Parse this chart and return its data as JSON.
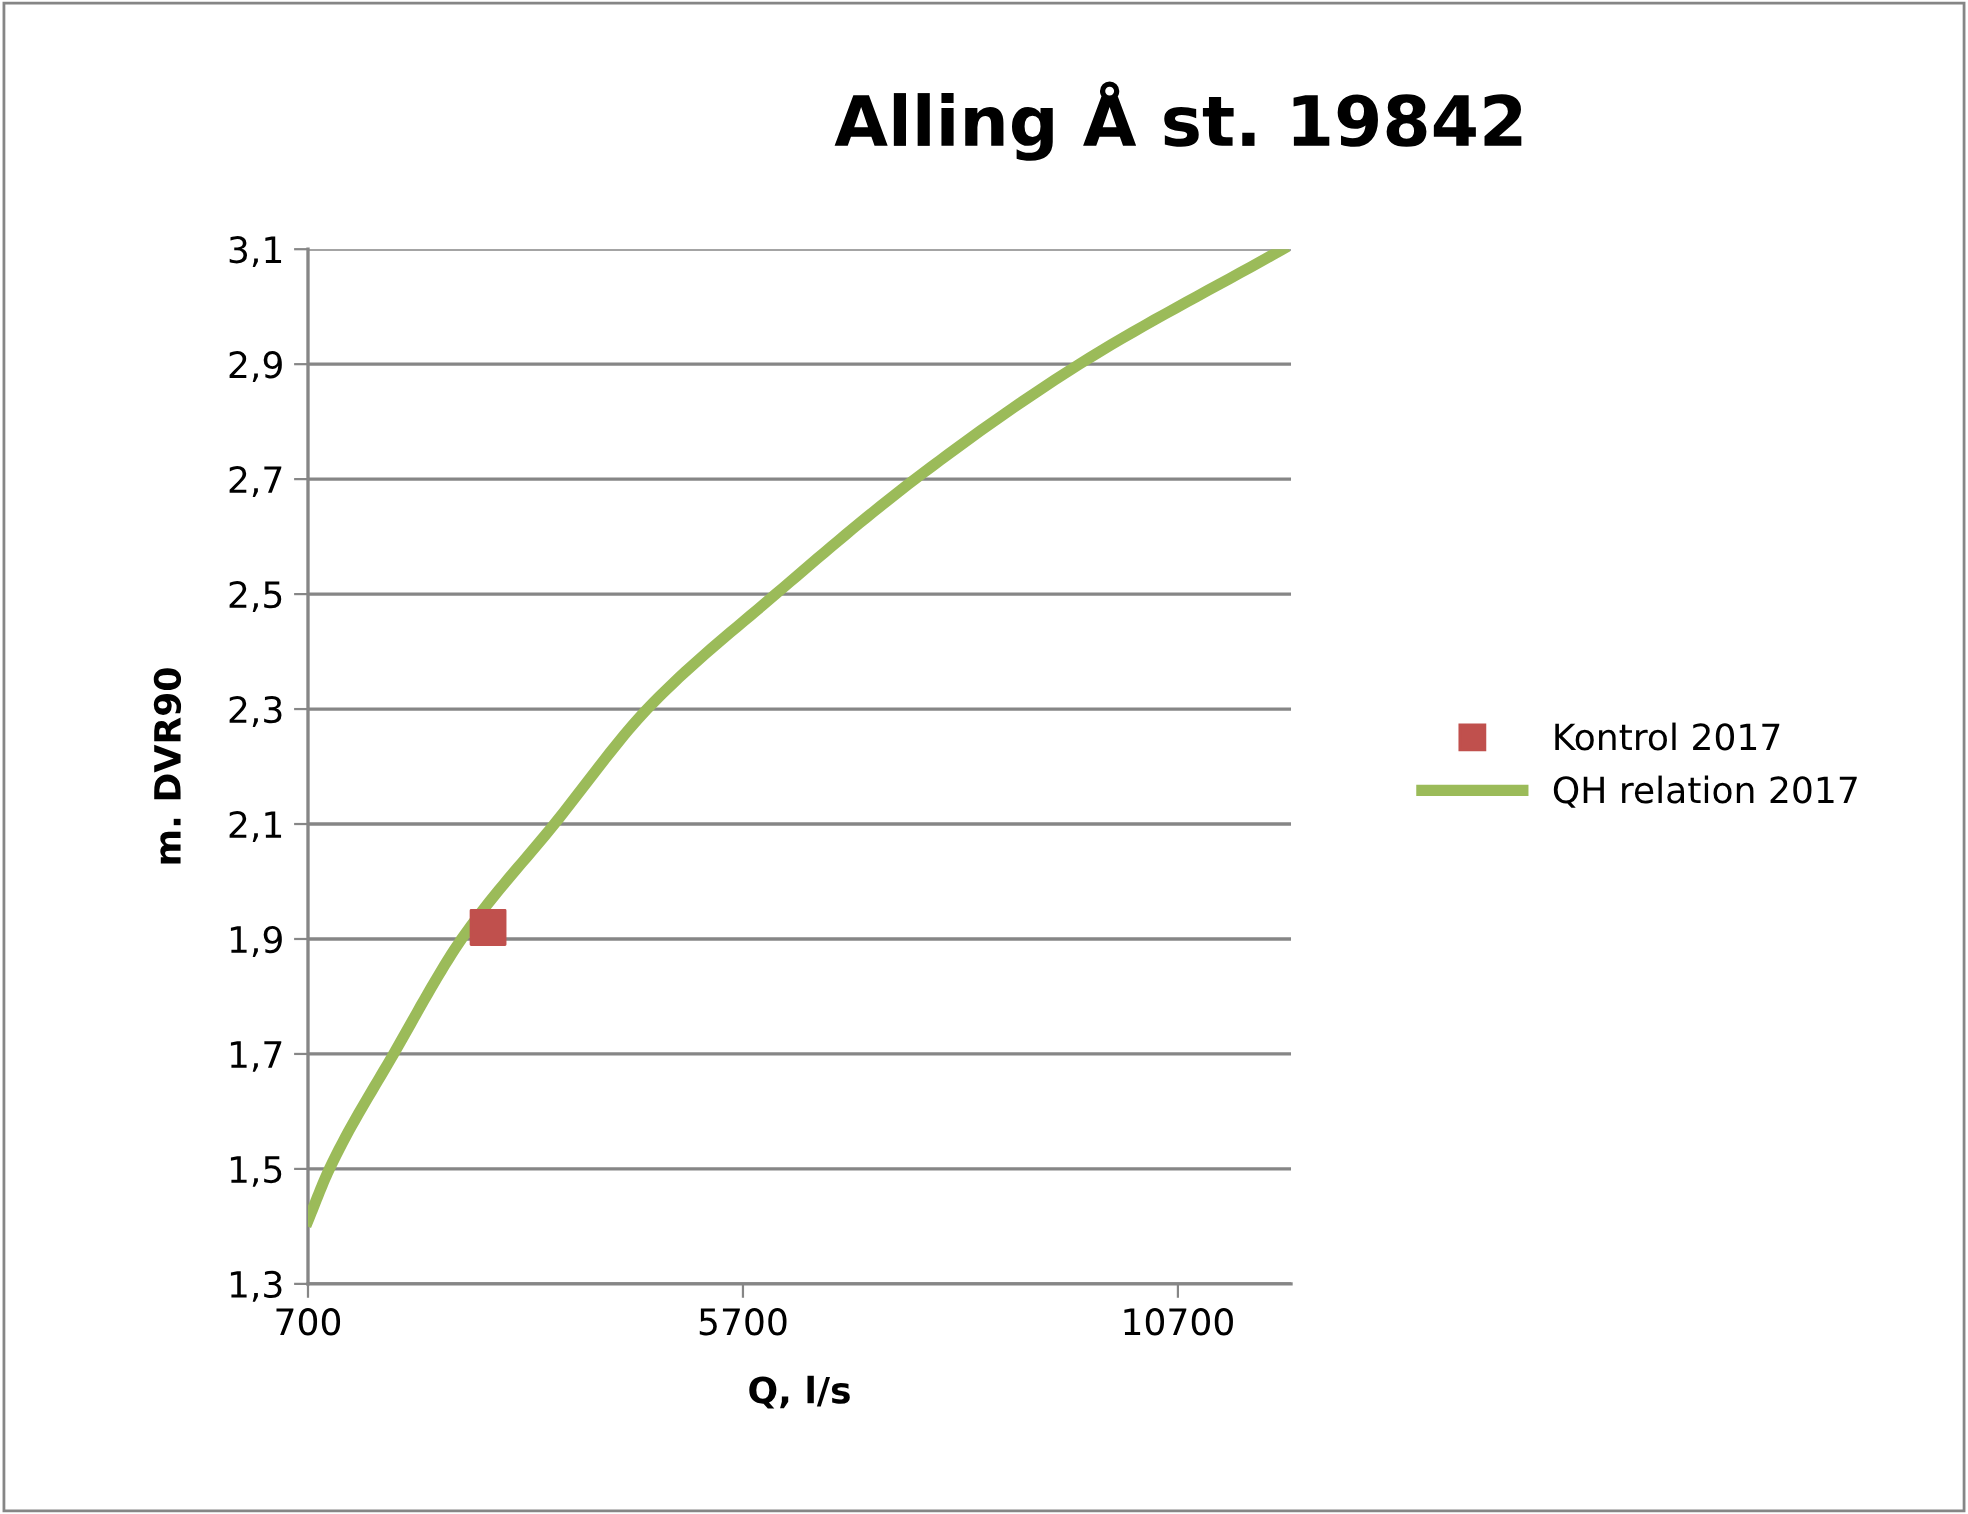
{
  "chart_data": {
    "type": "line",
    "title": "Alling Å st. 19842",
    "xlabel": "Q, l/s",
    "ylabel": "m. DVR90",
    "xlim": [
      700,
      12000
    ],
    "xticks": [
      700,
      5700,
      10700
    ],
    "ylim": [
      1.3,
      3.1
    ],
    "yticks": [
      {
        "value": 1.3,
        "label": "1,3"
      },
      {
        "value": 1.5,
        "label": "1,5"
      },
      {
        "value": 1.7,
        "label": "1,7"
      },
      {
        "value": 1.9,
        "label": "1,9"
      },
      {
        "value": 2.1,
        "label": "2,1"
      },
      {
        "value": 2.3,
        "label": "2,3"
      },
      {
        "value": 2.5,
        "label": "2,5"
      },
      {
        "value": 2.7,
        "label": "2,7"
      },
      {
        "value": 2.9,
        "label": "2,9"
      },
      {
        "value": 3.1,
        "label": "3,1"
      }
    ],
    "grid": "y",
    "legend": "right",
    "series": [
      {
        "name": "Kontrol 2017",
        "type": "scatter",
        "marker": "square",
        "color": "#c0504d",
        "x": [
          2770
        ],
        "values": [
          1.92
        ]
      },
      {
        "name": "QH relation 2017",
        "marker": "none",
        "color": "#9bbb59",
        "x": [
          700,
          946,
          1684,
          2466,
          3532,
          4599,
          6077,
          7678,
          9568,
          11905
        ],
        "values": [
          1.41,
          1.5,
          1.7,
          1.9,
          2.1,
          2.3,
          2.5,
          2.7,
          2.9,
          3.1
        ]
      }
    ]
  }
}
